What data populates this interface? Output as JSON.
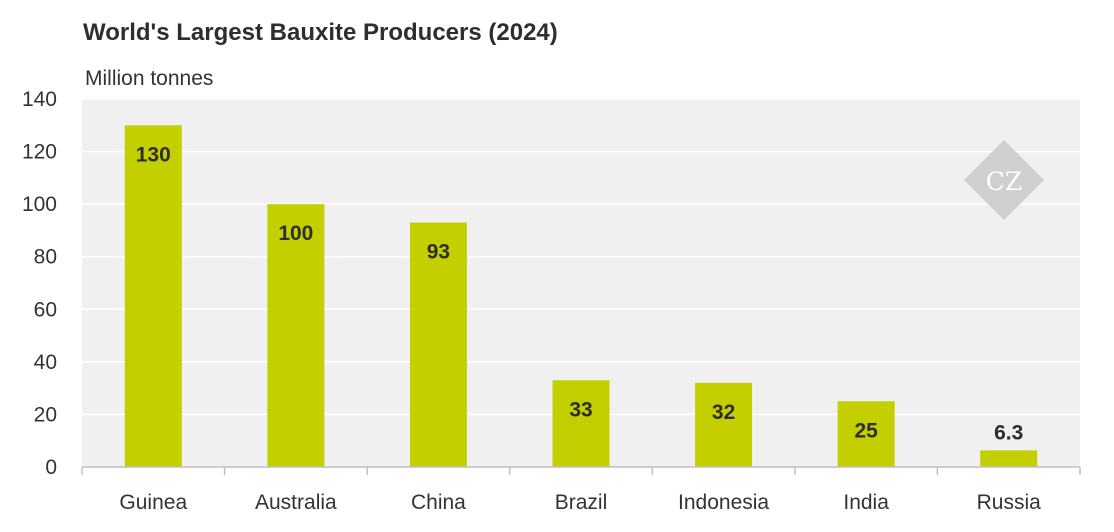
{
  "chart_data": {
    "type": "bar",
    "title": "World's Largest Bauxite Producers (2024)",
    "unit_label": "Million tonnes",
    "categories": [
      "Guinea",
      "Australia",
      "China",
      "Brazil",
      "Indonesia",
      "India",
      "Russia"
    ],
    "values": [
      130,
      100,
      93,
      33,
      32,
      25,
      6.3
    ],
    "value_labels": [
      "130",
      "100",
      "93",
      "33",
      "32",
      "25",
      "6.3"
    ],
    "ylim": [
      0,
      140
    ],
    "yticks": [
      0,
      20,
      40,
      60,
      80,
      100,
      120,
      140
    ],
    "grid": true,
    "legend": "none"
  },
  "colors": {
    "bar": "#c4cf00",
    "plot_background": "#f0f0f0",
    "grid": "#ffffff",
    "axis": "#bfbfbf",
    "logo": "#d0d0d0"
  },
  "logo": {
    "text": "CZ"
  }
}
